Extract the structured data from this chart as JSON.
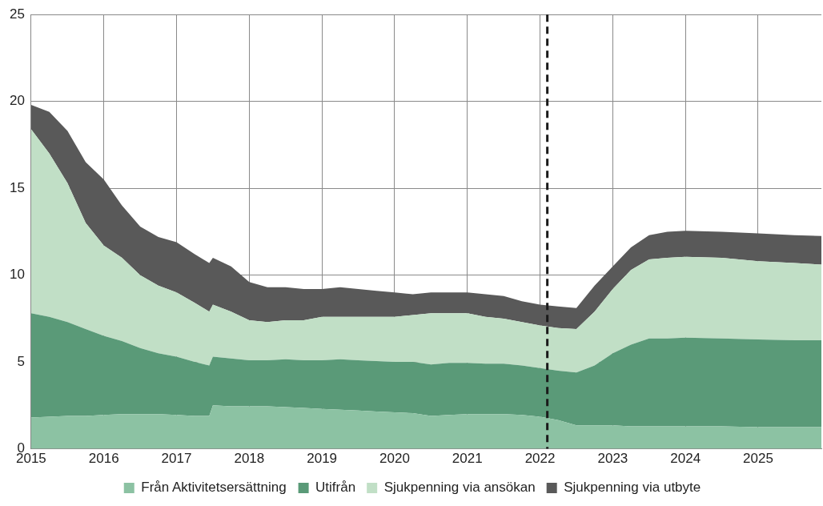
{
  "chart_data": {
    "type": "area",
    "stacked": true,
    "x": [
      2015.0,
      2015.25,
      2015.5,
      2015.75,
      2016.0,
      2016.25,
      2016.5,
      2016.75,
      2017.0,
      2017.25,
      2017.45,
      2017.5,
      2017.75,
      2018.0,
      2018.25,
      2018.5,
      2018.75,
      2019.0,
      2019.25,
      2019.5,
      2019.75,
      2020.0,
      2020.25,
      2020.5,
      2020.75,
      2021.0,
      2021.25,
      2021.5,
      2021.75,
      2022.0,
      2022.25,
      2022.5,
      2022.75,
      2023.0,
      2023.25,
      2023.5,
      2023.75,
      2024.0,
      2024.5,
      2025.0,
      2025.5,
      2025.87
    ],
    "series": [
      {
        "name": "Från Aktivitetsersättning",
        "color": "#8cc2a3",
        "values": [
          1.8,
          1.85,
          1.9,
          1.9,
          1.95,
          2.0,
          2.0,
          2.0,
          1.95,
          1.9,
          1.9,
          2.5,
          2.45,
          2.45,
          2.45,
          2.4,
          2.35,
          2.3,
          2.25,
          2.2,
          2.15,
          2.1,
          2.05,
          1.9,
          1.95,
          2.0,
          2.0,
          2.0,
          1.95,
          1.85,
          1.65,
          1.35,
          1.35,
          1.35,
          1.3,
          1.3,
          1.3,
          1.3,
          1.3,
          1.25,
          1.25,
          1.25
        ]
      },
      {
        "name": "Utifrån",
        "color": "#5a9a78",
        "values": [
          6.0,
          5.75,
          5.4,
          5.0,
          4.55,
          4.2,
          3.8,
          3.5,
          3.35,
          3.1,
          2.9,
          2.8,
          2.75,
          2.65,
          2.65,
          2.75,
          2.75,
          2.8,
          2.9,
          2.9,
          2.9,
          2.9,
          2.95,
          2.95,
          3.0,
          2.95,
          2.9,
          2.9,
          2.85,
          2.8,
          2.85,
          3.05,
          3.45,
          4.15,
          4.7,
          5.05,
          5.05,
          5.1,
          5.05,
          5.05,
          5.0,
          5.0
        ]
      },
      {
        "name": "Sjukpenning via ansökan",
        "color": "#c1dfc6",
        "values": [
          10.6,
          9.4,
          8.0,
          6.1,
          5.2,
          4.8,
          4.2,
          3.9,
          3.7,
          3.4,
          3.1,
          3.0,
          2.7,
          2.3,
          2.2,
          2.25,
          2.3,
          2.5,
          2.45,
          2.5,
          2.55,
          2.6,
          2.7,
          2.95,
          2.85,
          2.85,
          2.7,
          2.6,
          2.5,
          2.45,
          2.45,
          2.5,
          3.1,
          3.7,
          4.3,
          4.55,
          4.65,
          4.65,
          4.65,
          4.5,
          4.45,
          4.35
        ]
      },
      {
        "name": "Sjukpenning via utbyte",
        "color": "#595959",
        "values": [
          1.4,
          2.4,
          3.0,
          3.5,
          3.8,
          3.0,
          2.8,
          2.8,
          2.9,
          2.8,
          2.8,
          2.7,
          2.6,
          2.2,
          2.0,
          1.9,
          1.8,
          1.6,
          1.7,
          1.6,
          1.5,
          1.4,
          1.2,
          1.2,
          1.2,
          1.2,
          1.3,
          1.3,
          1.2,
          1.2,
          1.25,
          1.2,
          1.5,
          1.3,
          1.3,
          1.4,
          1.5,
          1.5,
          1.5,
          1.6,
          1.6,
          1.65
        ]
      }
    ],
    "xlim": [
      2015,
      2025.87
    ],
    "xticks": [
      2015,
      2016,
      2017,
      2018,
      2019,
      2020,
      2021,
      2022,
      2023,
      2024,
      2025
    ],
    "ylim": [
      0,
      25
    ],
    "yticks": [
      0,
      5,
      10,
      15,
      20,
      25
    ],
    "grid": true,
    "legend": "bottom",
    "ref_lines": [
      {
        "axis": "x",
        "value": 2022.1,
        "color": "#1a1a1a",
        "line_style": "dashed"
      }
    ]
  }
}
